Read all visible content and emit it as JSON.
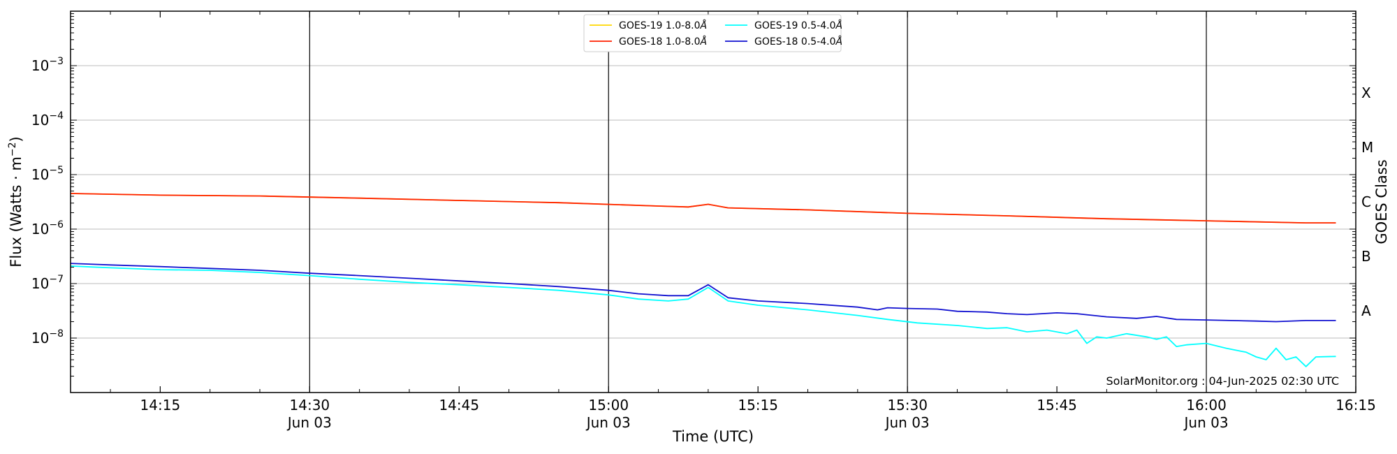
{
  "chart_data": {
    "type": "line",
    "xlabel": "Time (UTC)",
    "ylabel_main": "Flux (Watts · m",
    "ylabel_sup": "−2",
    "ylabel_close": ")",
    "y2label": "GOES Class",
    "y_scale": "log",
    "ylim": [
      1e-09,
      0.01
    ],
    "xlim": [
      "14:06",
      "16:15"
    ],
    "x_major_ticks": [
      {
        "time": "14:15",
        "label": "14:15",
        "date": ""
      },
      {
        "time": "14:30",
        "label": "14:30",
        "date": "Jun 03"
      },
      {
        "time": "14:45",
        "label": "14:45",
        "date": ""
      },
      {
        "time": "15:00",
        "label": "15:00",
        "date": "Jun 03"
      },
      {
        "time": "15:15",
        "label": "15:15",
        "date": ""
      },
      {
        "time": "15:30",
        "label": "15:30",
        "date": "Jun 03"
      },
      {
        "time": "15:45",
        "label": "15:45",
        "date": ""
      },
      {
        "time": "16:00",
        "label": "16:00",
        "date": "Jun 03"
      },
      {
        "time": "16:15",
        "label": "16:15",
        "date": ""
      }
    ],
    "vertical_lines": [
      "14:30",
      "15:00",
      "15:30",
      "16:00"
    ],
    "y_ticks": [
      {
        "value": 1e-08,
        "base": "10",
        "exp": "−8"
      },
      {
        "value": 1e-07,
        "base": "10",
        "exp": "−7"
      },
      {
        "value": 1e-06,
        "base": "10",
        "exp": "−6"
      },
      {
        "value": 1e-05,
        "base": "10",
        "exp": "−5"
      },
      {
        "value": 0.0001,
        "base": "10",
        "exp": "−4"
      },
      {
        "value": 0.001,
        "base": "10",
        "exp": "−3"
      }
    ],
    "goes_classes": [
      {
        "label": "A",
        "value": 3.16e-08
      },
      {
        "label": "B",
        "value": 3.16e-07
      },
      {
        "label": "C",
        "value": 3.16e-06
      },
      {
        "label": "M",
        "value": 3.16e-05
      },
      {
        "label": "X",
        "value": 0.000316
      }
    ],
    "grid": "horizontal at decades",
    "legend_placement": "top-center",
    "legend": [
      {
        "label": "GOES-19 1.0-8.0",
        "unit": "Å",
        "color": "#ffd700"
      },
      {
        "label": "GOES-18 1.0-8.0",
        "unit": "Å",
        "color": "#ff2000"
      },
      {
        "label": "GOES-19 0.5-4.0",
        "unit": "Å",
        "color": "#00ffff"
      },
      {
        "label": "GOES-18 0.5-4.0",
        "unit": "Å",
        "color": "#1010d0"
      }
    ],
    "credit": "SolarMonitor.org : 04-Jun-2025 02:30 UTC",
    "series": [
      {
        "name": "GOES-19 1.0-8.0Å",
        "color": "#ffd700",
        "x": [
          "14:06",
          "14:15",
          "14:25",
          "14:35",
          "14:45",
          "14:55",
          "15:05",
          "15:08",
          "15:10",
          "15:12",
          "15:20",
          "15:30",
          "15:40",
          "15:50",
          "16:00",
          "16:10",
          "16:13"
        ],
        "values": [
          4.5e-06,
          4.2e-06,
          4.05e-06,
          3.7e-06,
          3.35e-06,
          3.05e-06,
          2.65e-06,
          2.55e-06,
          2.85e-06,
          2.45e-06,
          2.25e-06,
          1.95e-06,
          1.75e-06,
          1.55e-06,
          1.42e-06,
          1.3e-06,
          1.3e-06
        ]
      },
      {
        "name": "GOES-18 1.0-8.0Å",
        "color": "#ff2000",
        "x": [
          "14:06",
          "14:15",
          "14:25",
          "14:35",
          "14:45",
          "14:55",
          "15:05",
          "15:08",
          "15:10",
          "15:12",
          "15:20",
          "15:30",
          "15:40",
          "15:50",
          "16:00",
          "16:10",
          "16:13"
        ],
        "values": [
          4.5e-06,
          4.2e-06,
          4.05e-06,
          3.7e-06,
          3.35e-06,
          3.05e-06,
          2.65e-06,
          2.55e-06,
          2.85e-06,
          2.45e-06,
          2.25e-06,
          1.95e-06,
          1.75e-06,
          1.55e-06,
          1.42e-06,
          1.3e-06,
          1.3e-06
        ]
      },
      {
        "name": "GOES-19 0.5-4.0Å",
        "color": "#00ffff",
        "x": [
          "14:06",
          "14:10",
          "14:15",
          "14:20",
          "14:25",
          "14:30",
          "14:35",
          "14:40",
          "14:45",
          "14:50",
          "14:55",
          "15:00",
          "15:03",
          "15:06",
          "15:08",
          "15:10",
          "15:12",
          "15:15",
          "15:20",
          "15:25",
          "15:28",
          "15:31",
          "15:35",
          "15:38",
          "15:40",
          "15:42",
          "15:44",
          "15:46",
          "15:47",
          "15:48",
          "15:49",
          "15:50",
          "15:52",
          "15:54",
          "15:55",
          "15:56",
          "15:57",
          "15:58",
          "16:00",
          "16:02",
          "16:04",
          "16:05",
          "16:06",
          "16:07",
          "16:08",
          "16:09",
          "16:10",
          "16:11",
          "16:13"
        ],
        "values": [
          2.1e-07,
          1.95e-07,
          1.8e-07,
          1.75e-07,
          1.6e-07,
          1.4e-07,
          1.2e-07,
          1.05e-07,
          9.5e-08,
          8.5e-08,
          7.5e-08,
          6.2e-08,
          5.2e-08,
          4.8e-08,
          5.2e-08,
          8.5e-08,
          4.8e-08,
          4e-08,
          3.3e-08,
          2.6e-08,
          2.2e-08,
          1.9e-08,
          1.7e-08,
          1.5e-08,
          1.55e-08,
          1.3e-08,
          1.4e-08,
          1.2e-08,
          1.4e-08,
          8e-09,
          1.05e-08,
          1e-08,
          1.2e-08,
          1.05e-08,
          9.5e-09,
          1.05e-08,
          7e-09,
          7.5e-09,
          8e-09,
          6.5e-09,
          5.5e-09,
          4.5e-09,
          4e-09,
          6.5e-09,
          4e-09,
          4.5e-09,
          3e-09,
          4.5e-09,
          4.6e-09
        ]
      },
      {
        "name": "GOES-18 0.5-4.0Å",
        "color": "#1010d0",
        "x": [
          "14:06",
          "14:10",
          "14:15",
          "14:20",
          "14:25",
          "14:30",
          "14:35",
          "14:40",
          "14:45",
          "14:50",
          "14:55",
          "15:00",
          "15:03",
          "15:06",
          "15:08",
          "15:10",
          "15:12",
          "15:15",
          "15:20",
          "15:25",
          "15:27",
          "15:28",
          "15:30",
          "15:33",
          "15:35",
          "15:38",
          "15:40",
          "15:42",
          "15:45",
          "15:47",
          "15:50",
          "15:53",
          "15:55",
          "15:57",
          "16:00",
          "16:05",
          "16:07",
          "16:10",
          "16:13"
        ],
        "values": [
          2.35e-07,
          2.2e-07,
          2.05e-07,
          1.9e-07,
          1.75e-07,
          1.55e-07,
          1.4e-07,
          1.25e-07,
          1.12e-07,
          1e-07,
          8.8e-08,
          7.5e-08,
          6.5e-08,
          6e-08,
          6e-08,
          9.5e-08,
          5.5e-08,
          4.8e-08,
          4.3e-08,
          3.7e-08,
          3.3e-08,
          3.6e-08,
          3.5e-08,
          3.4e-08,
          3.1e-08,
          3e-08,
          2.8e-08,
          2.7e-08,
          2.9e-08,
          2.8e-08,
          2.45e-08,
          2.3e-08,
          2.5e-08,
          2.2e-08,
          2.15e-08,
          2.05e-08,
          2e-08,
          2.1e-08,
          2.1e-08
        ]
      }
    ]
  }
}
